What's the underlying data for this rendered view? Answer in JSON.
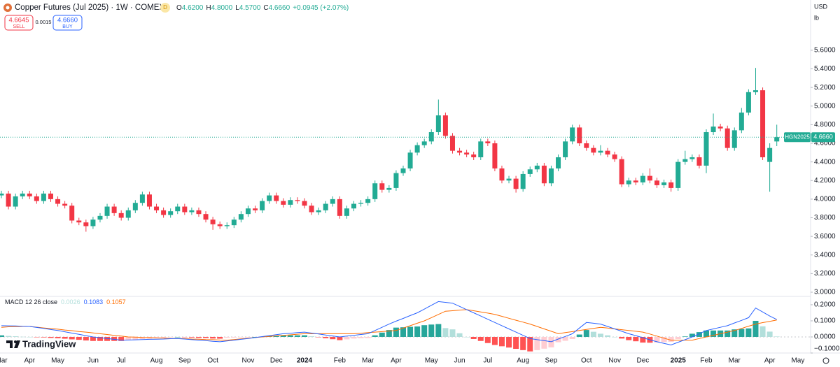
{
  "header": {
    "title": "Copper Futures (Jul 2025) · 1W · COMEX",
    "badge": "D",
    "ohlc": [
      {
        "label": "O",
        "value": "4.6200"
      },
      {
        "label": "H",
        "value": "4.8000"
      },
      {
        "label": "L",
        "value": "4.5700"
      },
      {
        "label": "C",
        "value": "4.6660"
      }
    ],
    "change": "+0.0945 (+2.07%)",
    "sell": {
      "price": "4.6645",
      "label": "SELL"
    },
    "spread": "0.0015",
    "buy": {
      "price": "4.6660",
      "label": "BUY"
    },
    "currency": "USD",
    "unit": "lb",
    "logo": "TradingView"
  },
  "chart_data": {
    "type": "candlestick",
    "categories": [
      "Mar",
      null,
      null,
      null,
      "Apr",
      null,
      null,
      null,
      "May",
      null,
      null,
      null,
      null,
      "Jun",
      null,
      null,
      null,
      "Jul",
      null,
      null,
      null,
      null,
      "Aug",
      null,
      null,
      null,
      "Sep",
      null,
      null,
      null,
      "Oct",
      null,
      null,
      null,
      null,
      "Nov",
      null,
      null,
      null,
      "Dec",
      null,
      null,
      null,
      "2024",
      null,
      null,
      null,
      null,
      "Feb",
      null,
      null,
      null,
      "Mar",
      null,
      null,
      null,
      "Apr",
      null,
      null,
      null,
      null,
      "May",
      null,
      null,
      null,
      "Jun",
      null,
      null,
      null,
      "Jul",
      null,
      null,
      null,
      null,
      "Aug",
      null,
      null,
      null,
      "Sep",
      null,
      null,
      null,
      null,
      "Oct",
      null,
      null,
      null,
      "Nov",
      null,
      null,
      null,
      "Dec",
      null,
      null,
      null,
      null,
      "2025",
      null,
      null,
      null,
      "Feb",
      null,
      null,
      null,
      "Mar",
      null,
      null,
      null,
      null,
      "Apr",
      null,
      null,
      null,
      "May"
    ],
    "open": [
      4.04,
      4.06,
      3.92,
      4.03,
      4.06,
      4.03,
      3.98,
      4.06,
      4.0,
      3.95,
      3.93,
      3.77,
      3.75,
      3.71,
      3.78,
      3.82,
      3.92,
      3.85,
      3.8,
      3.88,
      3.96,
      4.05,
      3.92,
      3.88,
      3.83,
      3.87,
      3.92,
      3.86,
      3.88,
      3.84,
      3.78,
      3.73,
      3.71,
      3.72,
      3.78,
      3.84,
      3.9,
      3.88,
      3.98,
      4.04,
      3.98,
      3.94,
      3.99,
      3.98,
      3.93,
      3.86,
      3.88,
      3.95,
      4.0,
      3.82,
      3.9,
      3.95,
      3.96,
      4.0,
      4.17,
      4.1,
      4.12,
      4.28,
      4.33,
      4.5,
      4.58,
      4.62,
      4.72,
      4.9,
      4.68,
      4.52,
      4.5,
      4.48,
      4.45,
      4.62,
      4.6,
      4.33,
      4.2,
      4.22,
      4.11,
      4.27,
      4.32,
      4.36,
      4.17,
      4.33,
      4.45,
      4.62,
      4.77,
      4.6,
      4.55,
      4.5,
      4.52,
      4.48,
      4.43,
      4.16,
      4.2,
      4.18,
      4.25,
      4.2,
      4.15,
      4.18,
      4.12,
      4.4,
      4.43,
      4.45,
      4.36,
      4.72,
      4.78,
      4.76,
      4.55,
      4.74,
      4.93,
      5.15,
      5.17,
      4.4,
      4.62,
      null,
      null,
      null
    ],
    "high": [
      4.09,
      4.09,
      4.06,
      4.09,
      4.09,
      4.06,
      4.09,
      4.09,
      4.03,
      3.98,
      3.96,
      3.8,
      3.78,
      3.81,
      3.85,
      3.95,
      3.95,
      3.88,
      3.91,
      3.99,
      4.08,
      4.08,
      3.95,
      3.91,
      3.9,
      3.95,
      3.95,
      3.91,
      3.91,
      3.87,
      3.81,
      3.76,
      3.75,
      3.81,
      3.87,
      3.93,
      3.93,
      4.01,
      4.07,
      4.07,
      4.01,
      4.02,
      4.02,
      4.01,
      3.96,
      3.91,
      3.98,
      4.03,
      4.03,
      3.93,
      3.98,
      3.99,
      4.03,
      4.2,
      4.2,
      4.15,
      4.31,
      4.36,
      4.53,
      4.61,
      4.65,
      4.75,
      5.07,
      4.93,
      4.71,
      4.55,
      4.53,
      4.51,
      4.65,
      4.65,
      4.63,
      4.36,
      4.25,
      4.25,
      4.3,
      4.35,
      4.39,
      4.39,
      4.36,
      4.48,
      4.65,
      4.8,
      4.8,
      4.63,
      4.58,
      4.58,
      4.55,
      4.51,
      4.46,
      4.23,
      4.23,
      4.28,
      4.33,
      4.23,
      4.21,
      4.21,
      4.43,
      4.52,
      4.48,
      4.48,
      4.75,
      4.92,
      4.81,
      4.79,
      4.77,
      4.98,
      5.18,
      5.41,
      5.2,
      4.6,
      4.8,
      null,
      null,
      null
    ],
    "low": [
      4.01,
      3.89,
      3.89,
      4.0,
      4.0,
      3.95,
      3.95,
      3.97,
      3.92,
      3.9,
      3.74,
      3.72,
      3.65,
      3.68,
      3.75,
      3.79,
      3.82,
      3.77,
      3.77,
      3.85,
      3.93,
      3.89,
      3.85,
      3.8,
      3.8,
      3.84,
      3.83,
      3.83,
      3.81,
      3.75,
      3.67,
      3.68,
      3.68,
      3.69,
      3.75,
      3.81,
      3.85,
      3.85,
      3.95,
      3.95,
      3.91,
      3.91,
      3.95,
      3.9,
      3.83,
      3.83,
      3.85,
      3.92,
      3.79,
      3.79,
      3.87,
      3.92,
      3.93,
      3.97,
      4.07,
      4.07,
      4.09,
      4.25,
      4.3,
      4.47,
      4.55,
      4.59,
      4.69,
      4.65,
      4.49,
      4.47,
      4.45,
      4.42,
      4.42,
      4.57,
      4.3,
      4.17,
      4.17,
      4.07,
      4.08,
      4.24,
      4.29,
      4.14,
      4.14,
      4.3,
      4.42,
      4.59,
      4.57,
      4.52,
      4.47,
      4.47,
      4.45,
      4.4,
      4.13,
      4.13,
      4.15,
      4.15,
      4.17,
      4.12,
      4.12,
      4.08,
      4.09,
      4.37,
      4.4,
      4.33,
      4.28,
      4.69,
      4.73,
      4.52,
      4.52,
      4.71,
      4.9,
      5.12,
      4.42,
      4.08,
      4.57,
      null,
      null,
      null
    ],
    "close": [
      4.06,
      3.92,
      4.03,
      4.06,
      4.03,
      3.98,
      4.06,
      4.0,
      3.95,
      3.93,
      3.77,
      3.75,
      3.71,
      3.78,
      3.82,
      3.92,
      3.85,
      3.8,
      3.88,
      3.96,
      4.05,
      3.92,
      3.88,
      3.83,
      3.87,
      3.92,
      3.86,
      3.88,
      3.84,
      3.78,
      3.73,
      3.71,
      3.72,
      3.78,
      3.84,
      3.9,
      3.88,
      3.98,
      4.04,
      3.98,
      3.94,
      3.99,
      3.98,
      3.93,
      3.86,
      3.88,
      3.95,
      4.0,
      3.82,
      3.9,
      3.95,
      3.96,
      4.0,
      4.17,
      4.1,
      4.12,
      4.28,
      4.33,
      4.5,
      4.58,
      4.62,
      4.72,
      4.9,
      4.68,
      4.52,
      4.5,
      4.48,
      4.45,
      4.62,
      4.6,
      4.33,
      4.2,
      4.22,
      4.11,
      4.27,
      4.32,
      4.36,
      4.17,
      4.33,
      4.45,
      4.62,
      4.77,
      4.6,
      4.55,
      4.5,
      4.52,
      4.48,
      4.43,
      4.16,
      4.2,
      4.18,
      4.25,
      4.2,
      4.15,
      4.18,
      4.12,
      4.4,
      4.43,
      4.45,
      4.36,
      4.72,
      4.78,
      4.76,
      4.55,
      4.74,
      4.93,
      5.15,
      5.17,
      4.45,
      4.55,
      4.666,
      null,
      null,
      null
    ],
    "up_color": "#22ab94",
    "down_color": "#f23645",
    "ylim": [
      2.985,
      6.14
    ],
    "yticks": [
      {
        "value": 3.0,
        "label": "3.0000"
      },
      {
        "value": 3.2,
        "label": "3.2000"
      },
      {
        "value": 3.4,
        "label": "3.4000"
      },
      {
        "value": 3.6,
        "label": "3.6000"
      },
      {
        "value": 3.8,
        "label": "3.8000"
      },
      {
        "value": 4.0,
        "label": "4.0000"
      },
      {
        "value": 4.2,
        "label": "4.2000"
      },
      {
        "value": 4.4,
        "label": "4.4000"
      },
      {
        "value": 4.6,
        "label": "4.6000"
      },
      {
        "value": 4.8,
        "label": "4.8000"
      },
      {
        "value": 5.0,
        "label": "5.0000"
      },
      {
        "value": 5.2,
        "label": "5.2000"
      },
      {
        "value": 5.4,
        "label": "5.4000"
      },
      {
        "value": 5.6,
        "label": "5.6000"
      }
    ],
    "last_price": {
      "name": "HGN2025",
      "label": "4.6660",
      "color": "#22ab94"
    },
    "grid": false,
    "indicator": {
      "name": "MACD 12 26 close",
      "histogram": [
        0.01,
        0.006,
        0.004,
        0.001,
        0.0,
        -0.002,
        -0.003,
        -0.006,
        -0.008,
        -0.011,
        -0.015,
        -0.018,
        -0.022,
        -0.025,
        -0.025,
        -0.025,
        -0.025,
        -0.025,
        -0.019,
        -0.017,
        -0.013,
        -0.011,
        -0.008,
        -0.006,
        -0.002,
        0.0,
        -0.002,
        -0.004,
        -0.006,
        -0.007,
        -0.01,
        -0.011,
        -0.005,
        -0.004,
        -0.003,
        -0.002,
        0.0,
        0.002,
        0.005,
        0.007,
        0.01,
        0.01,
        0.01,
        0.01,
        0.004,
        -0.002,
        -0.008,
        -0.014,
        -0.02,
        -0.015,
        -0.01,
        -0.008,
        -0.007,
        0.01,
        0.027,
        0.043,
        0.058,
        0.06,
        0.063,
        0.065,
        0.073,
        0.077,
        0.08,
        0.055,
        0.047,
        0.023,
        0.0,
        -0.013,
        -0.025,
        -0.038,
        -0.05,
        -0.058,
        -0.066,
        -0.074,
        -0.082,
        -0.09,
        -0.082,
        -0.073,
        -0.065,
        -0.033,
        -0.024,
        -0.013,
        0.015,
        0.043,
        0.032,
        0.02,
        0.01,
        0.0,
        -0.01,
        -0.02,
        -0.027,
        -0.035,
        -0.036,
        -0.035,
        -0.032,
        -0.03,
        -0.013,
        0.003,
        0.02,
        0.03,
        0.04,
        0.04,
        0.04,
        0.04,
        0.047,
        0.05,
        0.053,
        0.1,
        0.066,
        0.033,
        0.0026,
        null,
        null,
        null
      ],
      "macd": [
        0.07,
        0.069,
        0.068,
        0.066,
        0.065,
        0.059,
        0.053,
        0.046,
        0.04,
        0.032,
        0.024,
        0.016,
        0.008,
        0.0,
        -0.005,
        -0.01,
        -0.015,
        -0.02,
        -0.019,
        -0.018,
        -0.016,
        -0.015,
        -0.014,
        -0.013,
        -0.011,
        -0.01,
        -0.013,
        -0.017,
        -0.02,
        -0.023,
        -0.027,
        -0.03,
        -0.025,
        -0.02,
        -0.015,
        -0.01,
        -0.004,
        0.002,
        0.008,
        0.014,
        0.02,
        0.023,
        0.027,
        0.03,
        0.024,
        0.018,
        0.012,
        0.006,
        0.0,
        0.005,
        0.01,
        0.015,
        0.02,
        0.04,
        0.06,
        0.08,
        0.098,
        0.115,
        0.133,
        0.15,
        0.173,
        0.197,
        0.22,
        0.215,
        0.21,
        0.19,
        0.17,
        0.15,
        0.13,
        0.11,
        0.09,
        0.07,
        0.05,
        0.03,
        0.01,
        -0.01,
        -0.017,
        -0.023,
        -0.03,
        -0.013,
        0.003,
        0.02,
        0.055,
        0.09,
        0.085,
        0.08,
        0.065,
        0.05,
        0.035,
        0.02,
        0.008,
        -0.005,
        -0.018,
        -0.03,
        -0.04,
        -0.05,
        -0.033,
        -0.017,
        0.0,
        0.02,
        0.04,
        0.05,
        0.06,
        0.07,
        0.087,
        0.103,
        0.12,
        0.18,
        0.155,
        0.13,
        0.1083,
        null,
        null,
        null
      ],
      "signal": [
        0.06,
        0.063,
        0.064,
        0.065,
        0.065,
        0.061,
        0.056,
        0.052,
        0.048,
        0.043,
        0.039,
        0.034,
        0.03,
        0.025,
        0.02,
        0.015,
        0.01,
        0.005,
        0.0,
        -0.001,
        -0.003,
        -0.004,
        -0.006,
        -0.007,
        -0.009,
        -0.01,
        -0.011,
        -0.013,
        -0.014,
        -0.016,
        -0.017,
        -0.019,
        -0.02,
        -0.016,
        -0.012,
        -0.008,
        -0.004,
        0.0,
        0.003,
        0.007,
        0.01,
        0.013,
        0.017,
        0.02,
        0.02,
        0.02,
        0.02,
        0.02,
        0.02,
        0.02,
        0.02,
        0.023,
        0.027,
        0.03,
        0.033,
        0.037,
        0.04,
        0.055,
        0.07,
        0.085,
        0.1,
        0.12,
        0.14,
        0.16,
        0.163,
        0.167,
        0.17,
        0.163,
        0.155,
        0.148,
        0.14,
        0.128,
        0.116,
        0.104,
        0.092,
        0.08,
        0.065,
        0.05,
        0.035,
        0.02,
        0.027,
        0.033,
        0.04,
        0.047,
        0.053,
        0.06,
        0.055,
        0.05,
        0.045,
        0.04,
        0.035,
        0.03,
        0.018,
        0.005,
        -0.008,
        -0.02,
        -0.02,
        -0.02,
        -0.02,
        -0.01,
        0.0,
        0.01,
        0.02,
        0.03,
        0.04,
        0.053,
        0.067,
        0.08,
        0.089,
        0.097,
        0.1057,
        null,
        null,
        null
      ],
      "colors": {
        "macd": "#2962ff",
        "signal": "#ff6d00",
        "pos_grow": "#26a69a",
        "pos_fall": "#b2dfdb",
        "neg_fall": "#ff5252",
        "neg_grow": "#ffcdd2"
      },
      "ylim": [
        -0.1,
        0.252
      ],
      "yticks": [
        {
          "value": 0.2,
          "label": "0.2000"
        },
        {
          "value": 0.1,
          "label": "0.1000"
        },
        {
          "value": 0,
          "label": "0.0000"
        },
        {
          "value": -0.1,
          "label": "−0.1000"
        }
      ]
    }
  }
}
